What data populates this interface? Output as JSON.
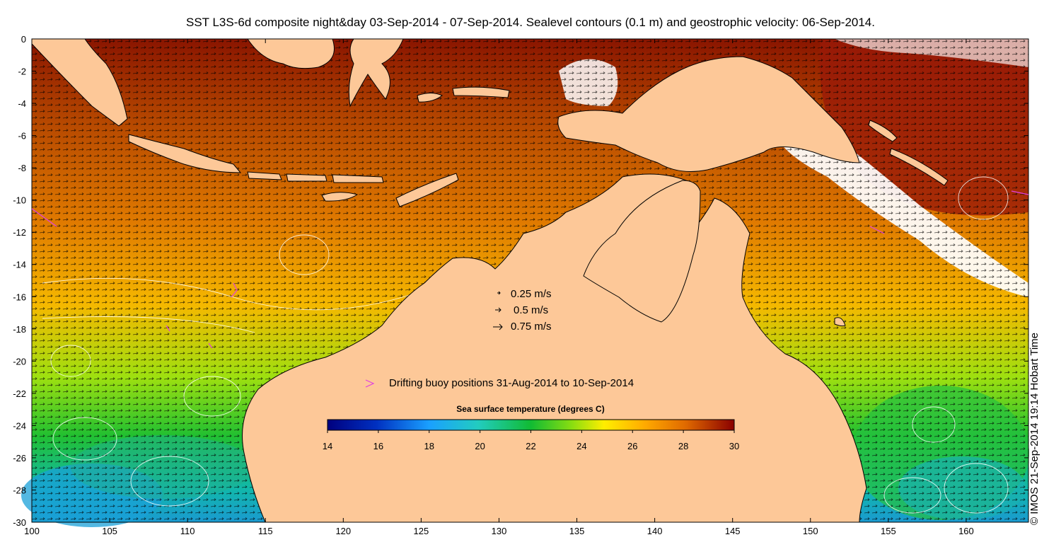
{
  "title": "SST L3S-6d composite night&day 03-Sep-2014 - 07-Sep-2014. Sealevel contours (0.1 m) and geostrophic velocity: 06-Sep-2014.",
  "credit": "© IMOS 21-Sep-2014 19:14 Hobart Time",
  "axes": {
    "x_ticks": [
      "100",
      "105",
      "110",
      "115",
      "120",
      "125",
      "130",
      "135",
      "140",
      "145",
      "150",
      "155",
      "160"
    ],
    "y_ticks": [
      "0",
      "-2",
      "-4",
      "-6",
      "-8",
      "-10",
      "-12",
      "-14",
      "-16",
      "-18",
      "-20",
      "-22",
      "-24",
      "-26",
      "-28",
      "-30"
    ],
    "lon_range": [
      100,
      164
    ],
    "lat_range": [
      -30,
      0
    ]
  },
  "velocity_legend": [
    {
      "label": "0.25 m/s",
      "icon": "small-arrow-icon"
    },
    {
      "label": "0.5 m/s",
      "icon": "medium-arrow-icon"
    },
    {
      "label": "0.75 m/s",
      "icon": "large-arrow-icon"
    }
  ],
  "buoy_legend": {
    "label": "Drifting buoy positions 31-Aug-2014 to 10-Sep-2014",
    "icon": "buoy-marker-icon",
    "color": "#e040e0"
  },
  "colorbar": {
    "title": "Sea surface temperature (degrees C)",
    "ticks": [
      "14",
      "16",
      "18",
      "20",
      "22",
      "24",
      "26",
      "28",
      "30"
    ],
    "range": [
      14,
      30
    ]
  },
  "colors": {
    "land": "#fdc898",
    "coast_outline": "#000000",
    "sst_scale": [
      "#00007f",
      "#0033cc",
      "#0099ff",
      "#22ccdd",
      "#22cc88",
      "#11bb22",
      "#88dd11",
      "#ffee00",
      "#ffaa00",
      "#e07000",
      "#b83000",
      "#7f0000"
    ]
  }
}
